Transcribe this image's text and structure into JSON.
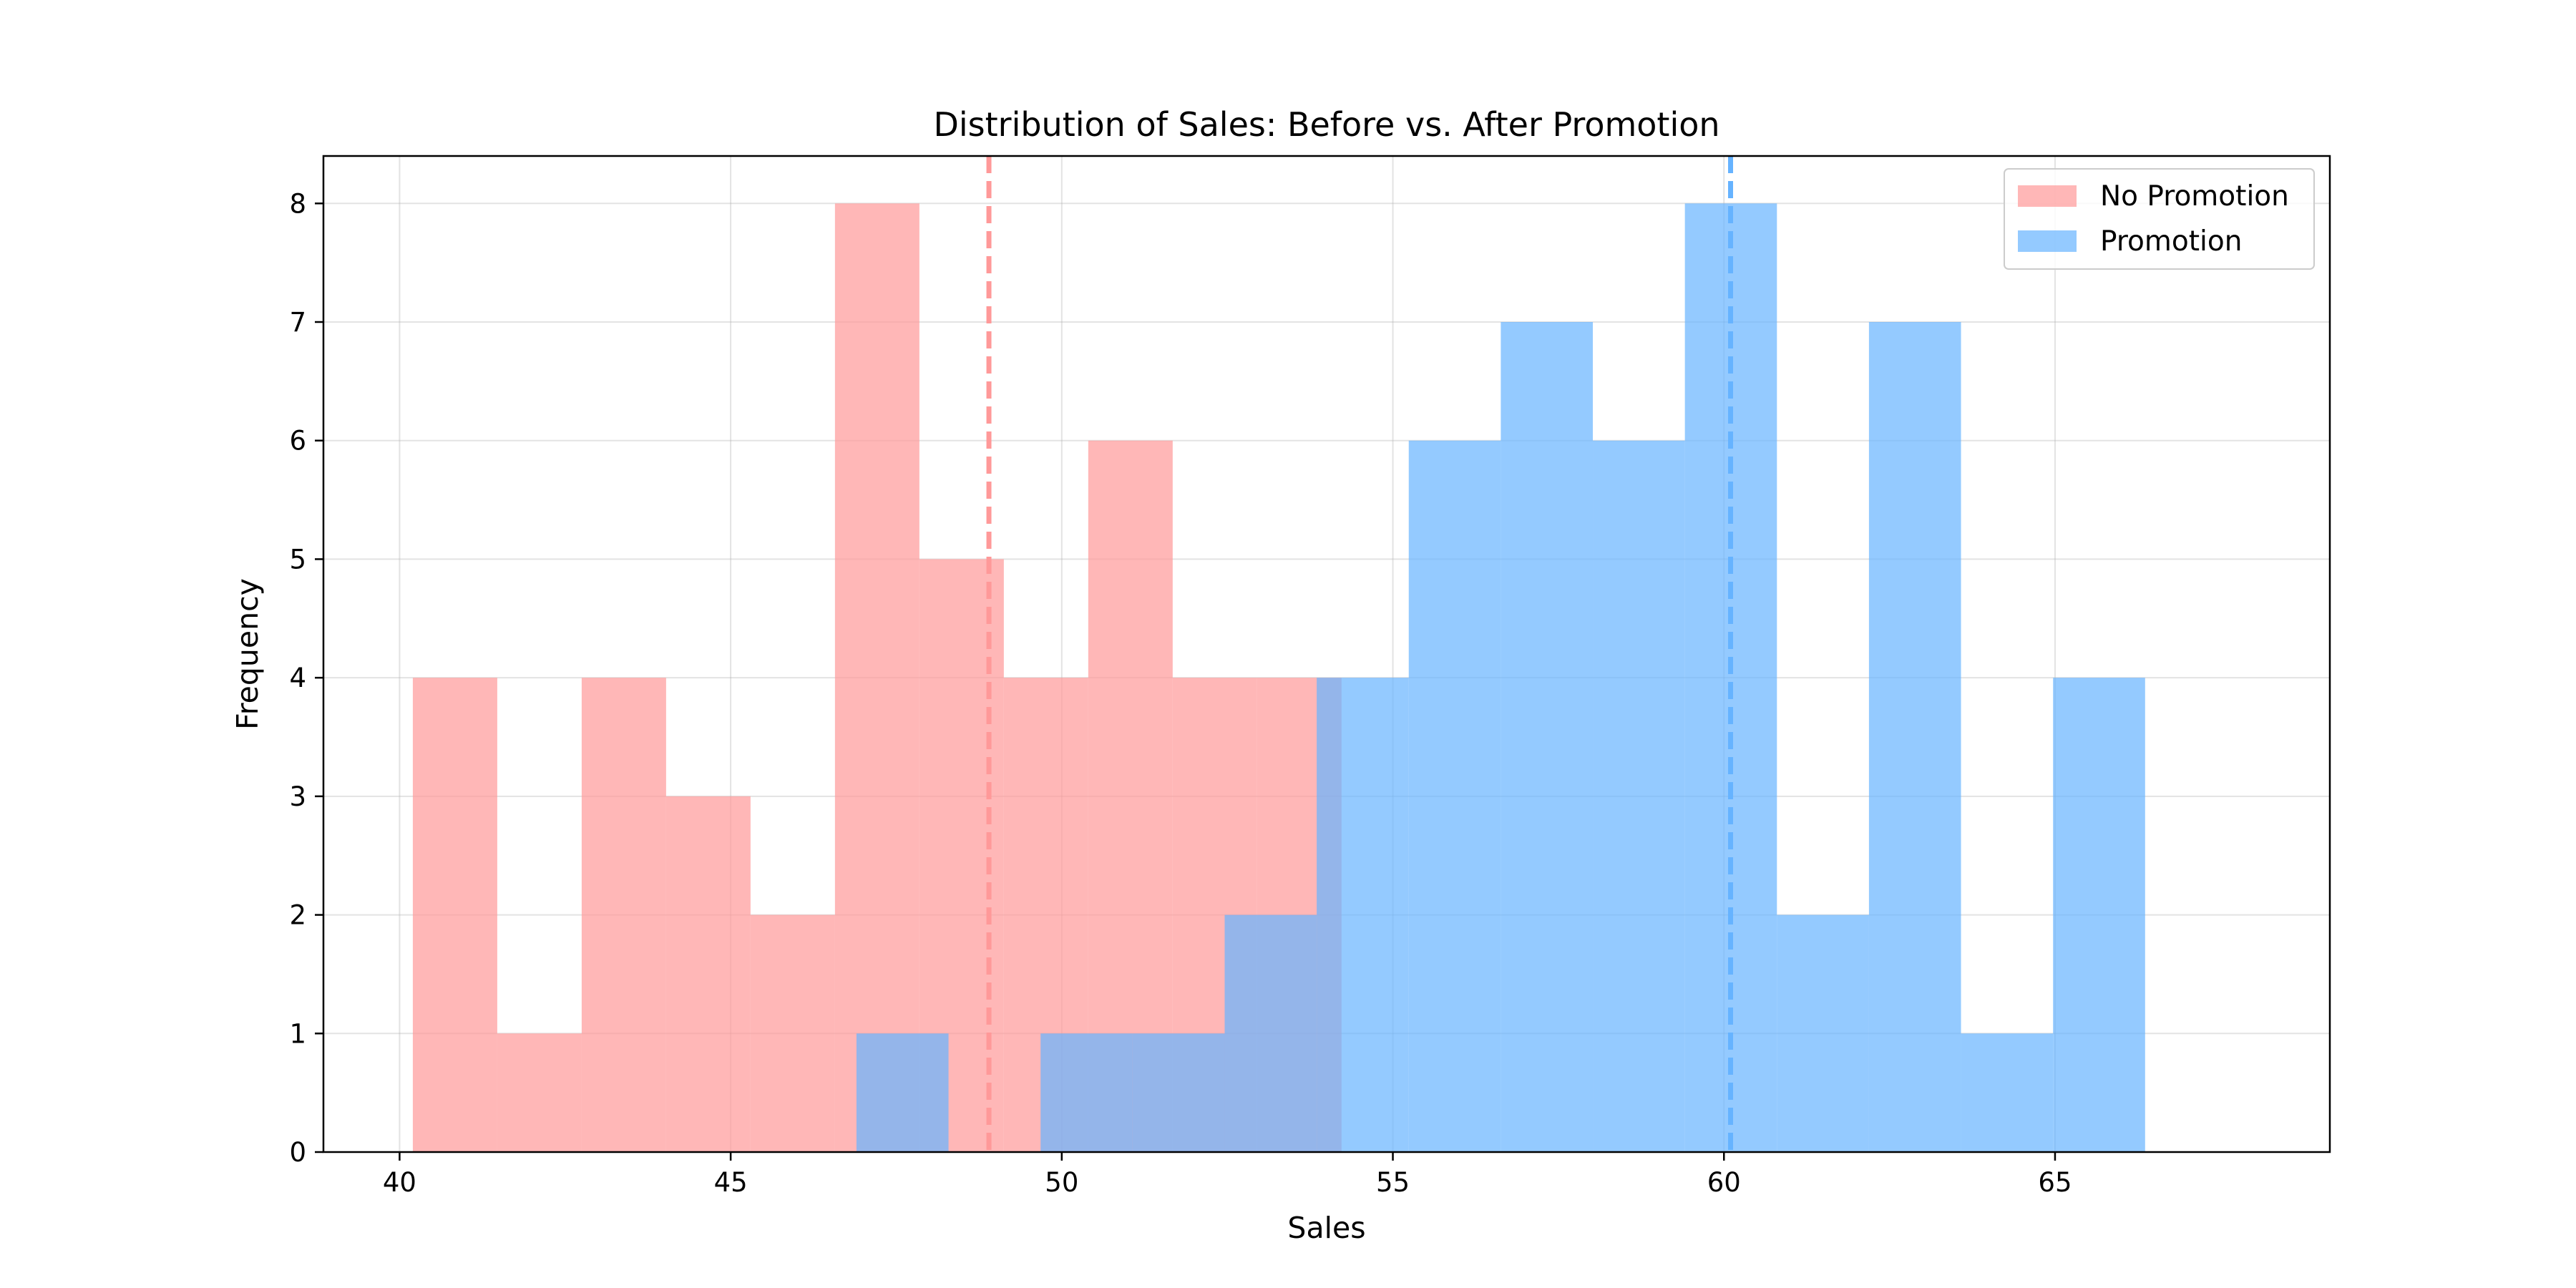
{
  "chart_data": {
    "type": "histogram",
    "title": "Distribution of Sales: Before vs. After Promotion",
    "xlabel": "Sales",
    "ylabel": "Frequency",
    "xlim": [
      38.85,
      69.15
    ],
    "ylim": [
      0,
      8.4
    ],
    "xticks": [
      40,
      45,
      50,
      55,
      60,
      65
    ],
    "yticks": [
      0,
      1,
      2,
      3,
      4,
      5,
      6,
      7,
      8
    ],
    "grid": true,
    "legend_position": "top-right",
    "series": [
      {
        "name": "No Promotion",
        "color": "#ff9999",
        "opacity": 0.7,
        "bin_start": 40.2,
        "bin_width": 1.275,
        "counts": [
          4,
          1,
          4,
          3,
          2,
          8,
          5,
          4,
          6,
          4,
          4
        ],
        "mean": 48.9
      },
      {
        "name": "Promotion",
        "color": "#66b3ff",
        "opacity": 0.7,
        "bin_start": 46.9,
        "bin_width": 1.39,
        "counts": [
          1,
          0,
          1,
          1,
          2,
          4,
          6,
          7,
          6,
          8,
          2,
          7,
          1,
          4
        ],
        "mean": 60.1
      }
    ]
  }
}
